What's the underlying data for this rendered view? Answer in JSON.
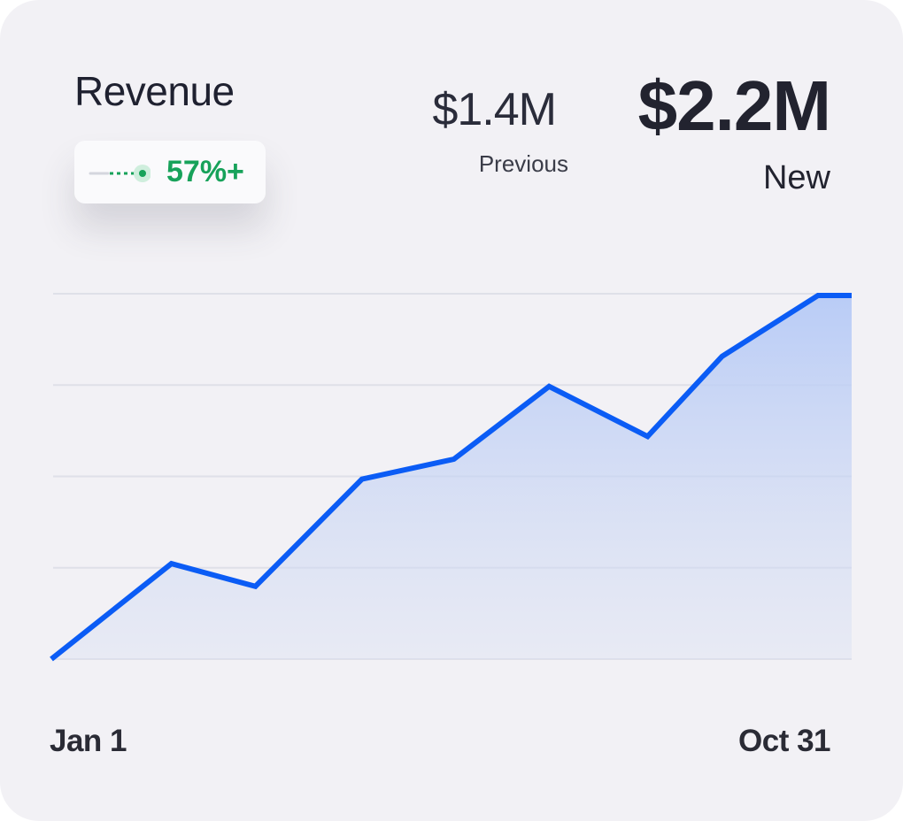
{
  "card": {
    "title": "Revenue",
    "change_badge": {
      "value": "57%+",
      "icon": "trend-dots-icon",
      "color": "#17a25a"
    },
    "previous": {
      "value": "$1.4M",
      "label": "Previous"
    },
    "new": {
      "value": "$2.2M",
      "label": "New"
    }
  },
  "colors": {
    "line": "#0b5cf5",
    "area": "#b9cdf7",
    "grid": "#dfe0e8",
    "background": "#f2f1f5"
  },
  "chart_data": {
    "type": "area",
    "x_labels": [
      "Jan 1",
      "Oct 31"
    ],
    "ylim": [
      0,
      4
    ],
    "grid": true,
    "gridline_count": 5,
    "values": [
      0,
      1.05,
      0.8,
      1.98,
      2.2,
      3.0,
      2.45,
      3.33,
      4.0,
      4.0
    ],
    "x_fraction": [
      0,
      0.15,
      0.255,
      0.388,
      0.503,
      0.622,
      0.745,
      0.838,
      0.958,
      1
    ]
  }
}
